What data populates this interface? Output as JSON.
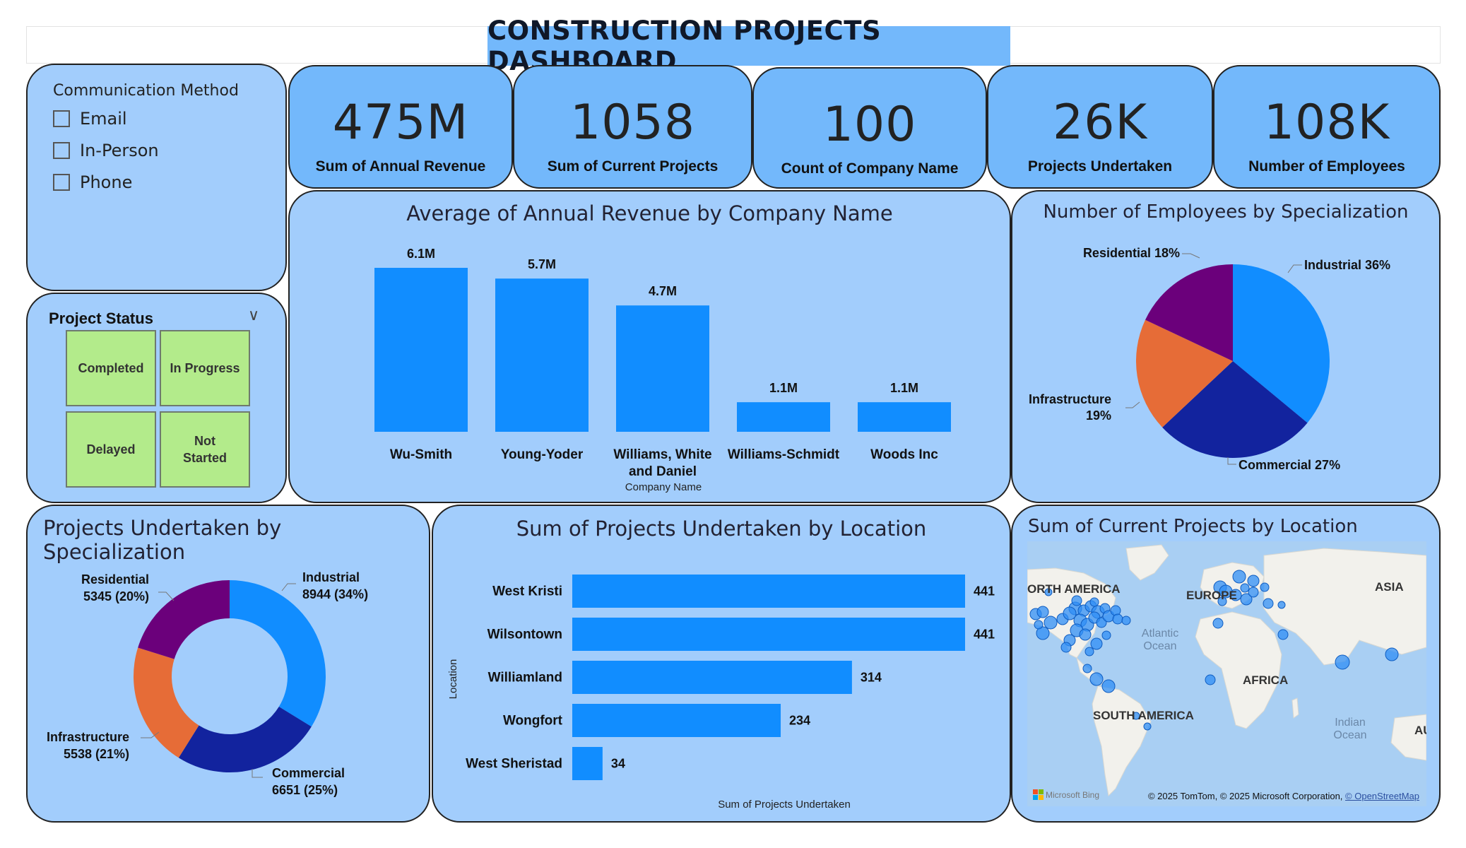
{
  "title": "CONSTRUCTION PROJECTS DASHBOARD",
  "communication_slicer": {
    "title": "Communication Method",
    "options": [
      "Email",
      "In-Person",
      "Phone"
    ]
  },
  "status_slicer": {
    "title": "Project Status",
    "tiles": [
      "Completed",
      "In Progress",
      "Delayed",
      "Not Started"
    ]
  },
  "kpis": [
    {
      "value": "475M",
      "label": "Sum of Annual Revenue"
    },
    {
      "value": "1058",
      "label": "Sum of Current Projects"
    },
    {
      "value": "100",
      "label": "Count of Company Name"
    },
    {
      "value": "26K",
      "label": "Projects Undertaken"
    },
    {
      "value": "108K",
      "label": "Number of Employees"
    }
  ],
  "colors": {
    "bar": "#118dff",
    "industrial": "#118dff",
    "commercial": "#12239e",
    "infrastructure": "#e66c37",
    "residential": "#6b007b",
    "panel": "#a2cdfc",
    "card": "#73b8fb",
    "tile": "#b3eb8b"
  },
  "charts": {
    "revenue_by_company": {
      "title": "Average of Annual Revenue by Company Name",
      "xlabel": "Company Name",
      "categories": [
        "Wu-Smith",
        "Young-Yoder",
        "Williams, White and Daniel",
        "Williams-Schmidt",
        "Woods Inc"
      ],
      "category_lines": [
        [
          "Wu-Smith"
        ],
        [
          "Young-Yoder"
        ],
        [
          "Williams, White",
          "and Daniel"
        ],
        [
          "Williams-Schmidt"
        ],
        [
          "Woods Inc"
        ]
      ],
      "values": [
        6.1,
        5.7,
        4.7,
        1.1,
        1.1
      ],
      "data_labels": [
        "6.1M",
        "5.7M",
        "4.7M",
        "1.1M",
        "1.1M"
      ]
    },
    "employees_by_specialization": {
      "title": "Number of Employees by Specialization",
      "slices": [
        {
          "name": "Industrial",
          "pct": 36,
          "label": "Industrial 36%"
        },
        {
          "name": "Commercial",
          "pct": 27,
          "label": "Commercial 27%"
        },
        {
          "name": "Infrastructure",
          "pct": 19,
          "label_lines": [
            "Infrastructure",
            "19%"
          ]
        },
        {
          "name": "Residential",
          "pct": 18,
          "label": "Residential 18%"
        }
      ]
    },
    "projects_by_specialization": {
      "title": "Projects Undertaken by Specialization",
      "slices": [
        {
          "name": "Industrial",
          "value": 8944,
          "label_lines": [
            "Industrial",
            "8944 (34%)"
          ]
        },
        {
          "name": "Commercial",
          "value": 6651,
          "label_lines": [
            "Commercial",
            "6651 (25%)"
          ]
        },
        {
          "name": "Infrastructure",
          "value": 5538,
          "label_lines": [
            "Infrastructure",
            "5538 (21%)"
          ]
        },
        {
          "name": "Residential",
          "value": 5345,
          "label_lines": [
            "Residential",
            "5345 (20%)"
          ]
        }
      ]
    },
    "projects_by_location": {
      "title": "Sum of Projects Undertaken by Location",
      "xlabel": "Sum of Projects Undertaken",
      "ylabel": "Location",
      "categories": [
        "West Kristi",
        "Wilsontown",
        "Williamland",
        "Wongfort",
        "West Sheristad"
      ],
      "values": [
        441,
        441,
        314,
        234,
        34
      ]
    },
    "map": {
      "title": "Sum of Current Projects by Location",
      "labels": [
        "ORTH AMERICA",
        "EUROPE",
        "ASIA",
        "AFRICA",
        "SOUTH AMERICA",
        "Atlantic",
        "Ocean",
        "Indian",
        "Ocean",
        "AU"
      ],
      "brand": "Microsoft Bing",
      "attribution": "© 2025 TomTom, © 2025 Microsoft Corporation, ",
      "attribution_link": "© OpenStreetMap"
    }
  }
}
